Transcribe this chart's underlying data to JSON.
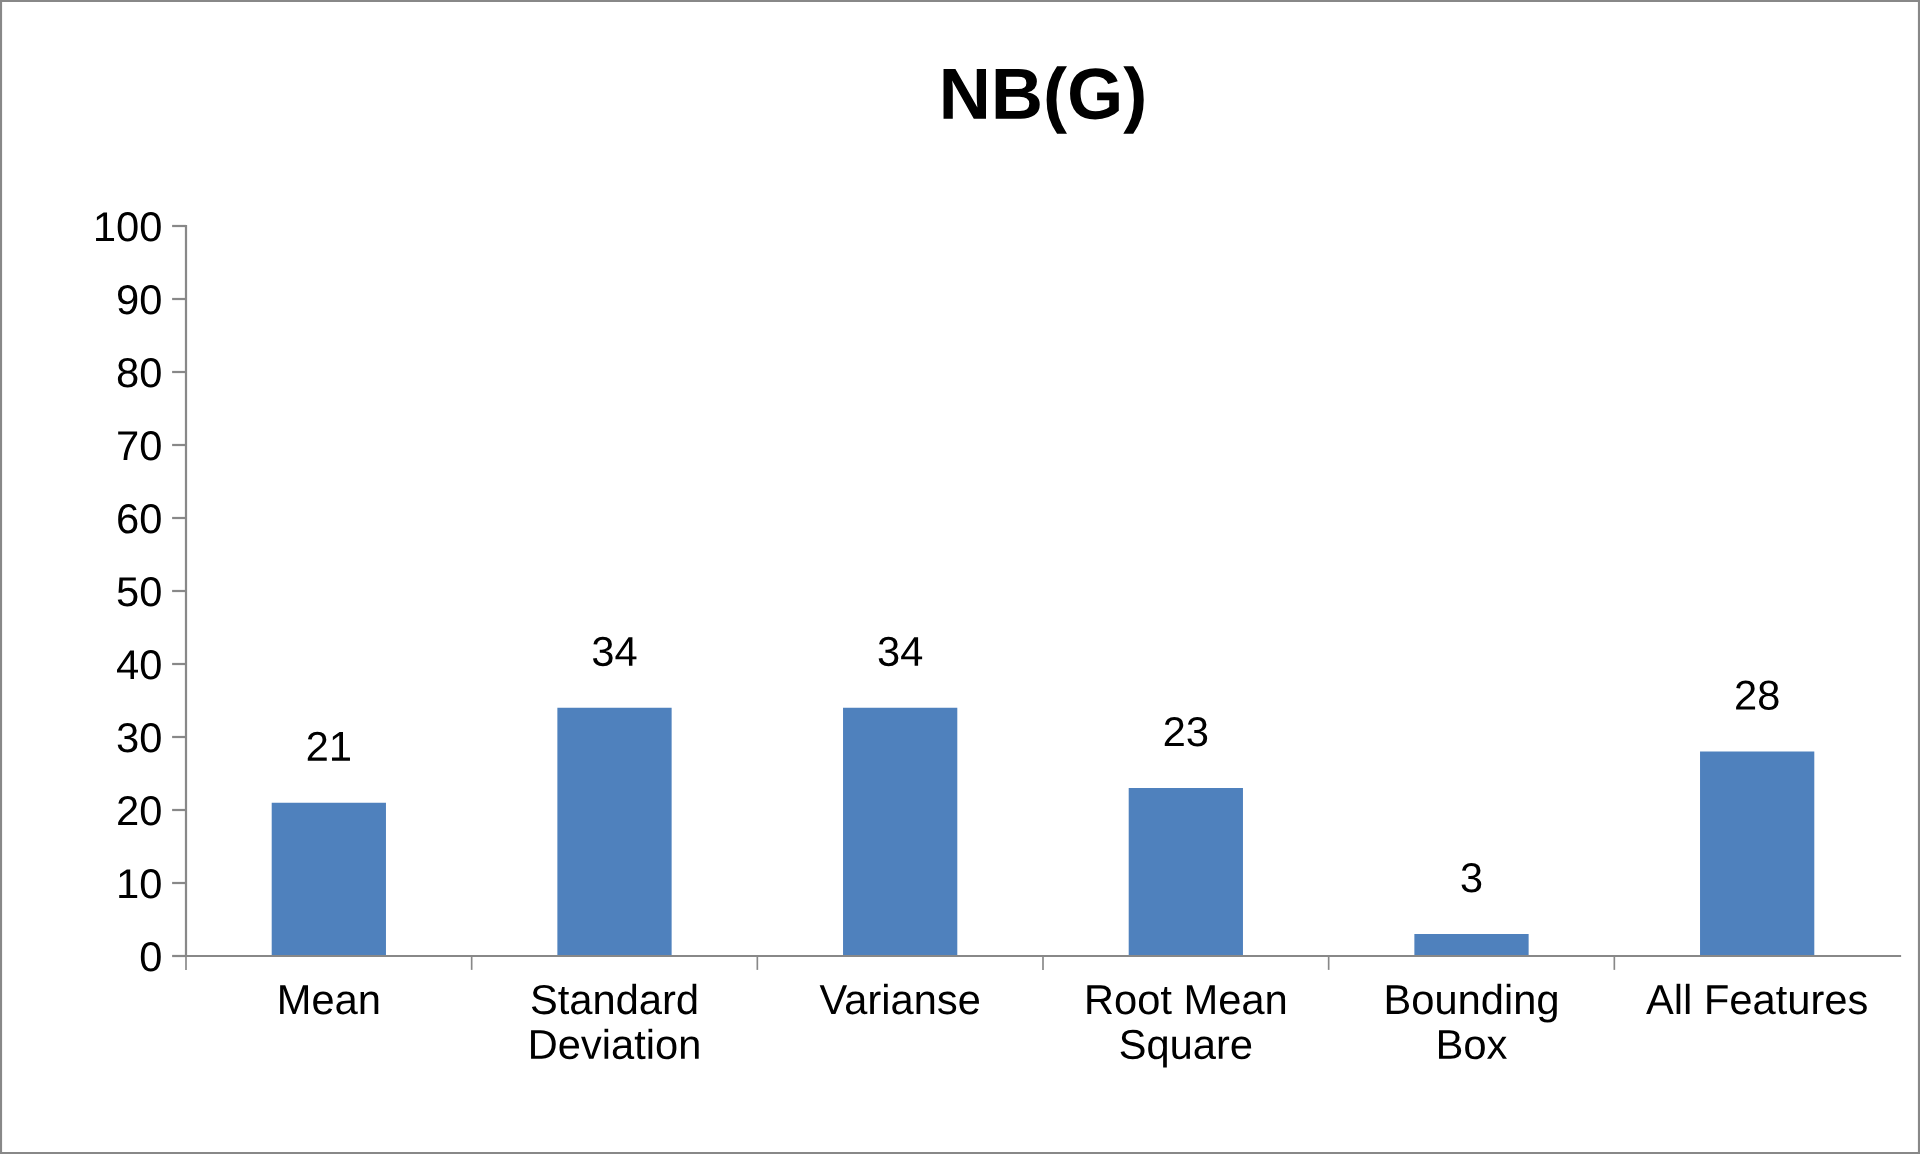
{
  "chart_data": {
    "type": "bar",
    "title": "NB(G)",
    "categories": [
      "Mean",
      "Standard\nDeviation",
      "Varianse",
      "Root Mean\nSquare",
      "Bounding\nBox",
      "All Features"
    ],
    "values": [
      21,
      34,
      34,
      23,
      3,
      28
    ],
    "color": "#4f81bd",
    "ylim": [
      0,
      100
    ],
    "yticks": [
      0,
      10,
      20,
      30,
      40,
      50,
      60,
      70,
      80,
      90,
      100
    ],
    "data_labels": true,
    "grid": false,
    "legend": false
  }
}
